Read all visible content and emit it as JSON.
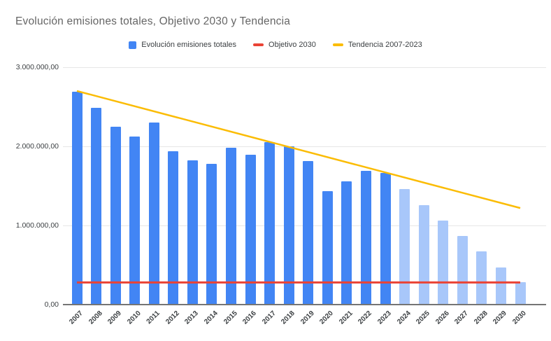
{
  "chart_data": {
    "type": "bar",
    "title": "Evolución emisiones totales, Objetivo 2030 y Tendencia",
    "xlabel": "",
    "ylabel": "",
    "grid": true,
    "legend_position": "top",
    "ylim": [
      0,
      3000000
    ],
    "yticks": [
      {
        "value": 0,
        "label": "0,00"
      },
      {
        "value": 1000000,
        "label": "1.000.000,00"
      },
      {
        "value": 2000000,
        "label": "2.000.000,00"
      },
      {
        "value": 3000000,
        "label": "3.000.000,00"
      }
    ],
    "categories": [
      "2007",
      "2008",
      "2009",
      "2010",
      "2011",
      "2012",
      "2013",
      "2014",
      "2015",
      "2016",
      "2017",
      "2018",
      "2019",
      "2020",
      "2021",
      "2022",
      "2023",
      "2024",
      "2025",
      "2026",
      "2027",
      "2028",
      "2029",
      "2030"
    ],
    "series": [
      {
        "name": "Evolución emisiones totales",
        "type": "bar",
        "color": "#4285F4",
        "projected_color": "#A8C7FA",
        "projected_from": "2024",
        "values": [
          2690000,
          2490000,
          2250000,
          2120000,
          2300000,
          1940000,
          1820000,
          1780000,
          1980000,
          1890000,
          2050000,
          2000000,
          1810000,
          1430000,
          1560000,
          1690000,
          1660000,
          1460000,
          1260000,
          1060000,
          870000,
          670000,
          470000,
          280000
        ]
      },
      {
        "name": "Objetivo 2030",
        "type": "line",
        "color": "#EA4335",
        "constant_value": 280000,
        "start_category": "2007",
        "end_category": "2030"
      },
      {
        "name": "Tendencia 2007-2023",
        "type": "line",
        "color": "#FBBC04",
        "start_category": "2007",
        "start_value": 2700000,
        "end_category": "2030",
        "end_value": 1220000
      }
    ]
  }
}
